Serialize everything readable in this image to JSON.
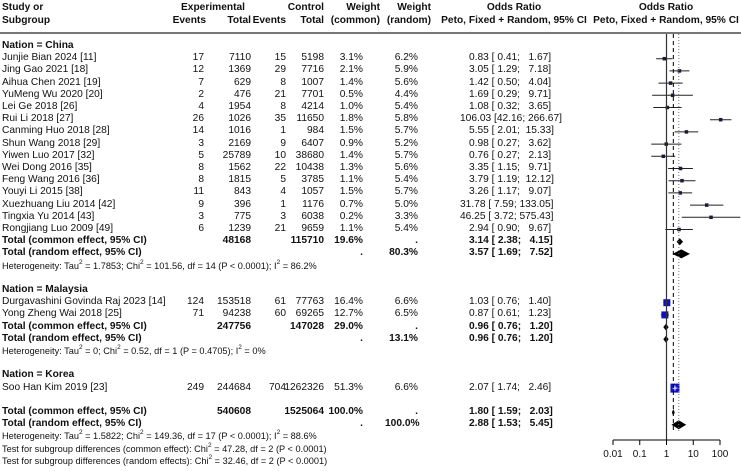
{
  "header": {
    "study_l1": "Study or",
    "study_l2": "Subgroup",
    "experimental": "Experimental",
    "exp_events": "Events",
    "exp_total": "Total",
    "ctrl_events": "Events",
    "control": "Control",
    "ctrl_total": "Total",
    "w_common_l1": "Weight",
    "w_common_l2": "(common)",
    "w_random_l1": "Weight",
    "w_random_l2": "(random)",
    "or_l1": "Odds Ratio",
    "or_l2": "Peto, Fixed + Random, 95% CI",
    "plot_l1": "Odds Ratio",
    "plot_l2": "Peto, Fixed + Random, 95% CI"
  },
  "rows": [
    {
      "type": "group",
      "label": "Nation = China"
    },
    {
      "type": "study",
      "label": "Junjie Bian 2024 [11]",
      "e_ev": "17",
      "e_tot": "7110",
      "c_ev": "15",
      "c_tot": "5198",
      "w_c": "3.1%",
      "w_r": "6.2%",
      "or": "0.83 [ 0.41;   1.67]",
      "est": 0.83,
      "lo": 0.41,
      "hi": 1.67
    },
    {
      "type": "study",
      "label": "Jing Gao 2021 [18]",
      "e_ev": "12",
      "e_tot": "1369",
      "c_ev": "29",
      "c_tot": "7716",
      "w_c": "2.1%",
      "w_r": "5.9%",
      "or": "3.05 [ 1.29;   7.18]",
      "est": 3.05,
      "lo": 1.29,
      "hi": 7.18
    },
    {
      "type": "study",
      "label": "Aihua Chen 2021 [19]",
      "e_ev": "7",
      "e_tot": "629",
      "c_ev": "8",
      "c_tot": "1007",
      "w_c": "1.4%",
      "w_r": "5.6%",
      "or": "1.42 [ 0.50;   4.04]",
      "est": 1.42,
      "lo": 0.5,
      "hi": 4.04
    },
    {
      "type": "study",
      "label": "YuMeng Wu 2020 [20]",
      "e_ev": "2",
      "e_tot": "476",
      "c_ev": "21",
      "c_tot": "7701",
      "w_c": "0.5%",
      "w_r": "4.4%",
      "or": "1.69 [ 0.29;   9.71]",
      "est": 1.69,
      "lo": 0.29,
      "hi": 9.71
    },
    {
      "type": "study",
      "label": "Lei Ge 2018 [26]",
      "e_ev": "4",
      "e_tot": "1954",
      "c_ev": "8",
      "c_tot": "4214",
      "w_c": "1.0%",
      "w_r": "5.4%",
      "or": "1.08 [ 0.32;   3.65]",
      "est": 1.08,
      "lo": 0.32,
      "hi": 3.65
    },
    {
      "type": "study",
      "label": "Rui Li 2018 [27]",
      "e_ev": "26",
      "e_tot": "1026",
      "c_ev": "35",
      "c_tot": "11650",
      "w_c": "1.8%",
      "w_r": "5.8%",
      "or": "106.03 [42.16; 266.67]",
      "est": 106.03,
      "lo": 42.16,
      "hi": 266.67
    },
    {
      "type": "study",
      "label": "Canming Huo 2018 [28]",
      "e_ev": "14",
      "e_tot": "1016",
      "c_ev": "1",
      "c_tot": "984",
      "w_c": "1.5%",
      "w_r": "5.7%",
      "or": "5.55 [ 2.01;  15.33]",
      "est": 5.55,
      "lo": 2.01,
      "hi": 15.33
    },
    {
      "type": "study",
      "label": "Shun Wang 2018 [29]",
      "e_ev": "3",
      "e_tot": "2169",
      "c_ev": "9",
      "c_tot": "6407",
      "w_c": "0.9%",
      "w_r": "5.2%",
      "or": "0.98 [ 0.27;   3.62]",
      "est": 0.98,
      "lo": 0.27,
      "hi": 3.62
    },
    {
      "type": "study",
      "label": "Yiwen Luo 2017 [32]",
      "e_ev": "5",
      "e_tot": "25789",
      "c_ev": "10",
      "c_tot": "38680",
      "w_c": "1.4%",
      "w_r": "5.7%",
      "or": "0.76 [ 0.27;   2.13]",
      "est": 0.76,
      "lo": 0.27,
      "hi": 2.13
    },
    {
      "type": "study",
      "label": "Wei Dong 2016 [35]",
      "e_ev": "8",
      "e_tot": "1562",
      "c_ev": "22",
      "c_tot": "10438",
      "w_c": "1.3%",
      "w_r": "5.6%",
      "or": "3.35 [ 1.15;   9.71]",
      "est": 3.35,
      "lo": 1.15,
      "hi": 9.71
    },
    {
      "type": "study",
      "label": "Feng Wang 2016 [36]",
      "e_ev": "8",
      "e_tot": "1815",
      "c_ev": "5",
      "c_tot": "3785",
      "w_c": "1.1%",
      "w_r": "5.4%",
      "or": "3.79 [ 1.19;  12.12]",
      "est": 3.79,
      "lo": 1.19,
      "hi": 12.12
    },
    {
      "type": "study",
      "label": "Youyi Li 2015 [38]",
      "e_ev": "11",
      "e_tot": "843",
      "c_ev": "4",
      "c_tot": "1057",
      "w_c": "1.5%",
      "w_r": "5.7%",
      "or": "3.26 [ 1.17;   9.07]",
      "est": 3.26,
      "lo": 1.17,
      "hi": 9.07
    },
    {
      "type": "study",
      "label": "Xuezhuang Liu 2014 [42]",
      "e_ev": "9",
      "e_tot": "396",
      "c_ev": "1",
      "c_tot": "1176",
      "w_c": "0.7%",
      "w_r": "5.0%",
      "or": "31.78 [ 7.59; 133.05]",
      "est": 31.78,
      "lo": 7.59,
      "hi": 133.05
    },
    {
      "type": "study",
      "label": "Tingxia Yu 2014 [43]",
      "e_ev": "3",
      "e_tot": "775",
      "c_ev": "3",
      "c_tot": "6038",
      "w_c": "0.2%",
      "w_r": "3.3%",
      "or": "46.25 [ 3.72; 575.43]",
      "est": 46.25,
      "lo": 3.72,
      "hi": 575.43
    },
    {
      "type": "study",
      "label": "Rongjiang Luo 2009 [49]",
      "e_ev": "6",
      "e_tot": "1239",
      "c_ev": "21",
      "c_tot": "9659",
      "w_c": "1.1%",
      "w_r": "5.4%",
      "or": "2.94 [ 0.90;   9.67]",
      "est": 2.94,
      "lo": 0.9,
      "hi": 9.67
    },
    {
      "type": "common",
      "label": "Total (common effect, 95% CI)",
      "e_tot": "48168",
      "c_tot": "115710",
      "w_c": "19.6%",
      "w_r": ".",
      "or": "3.14 [ 2.38;   4.15]",
      "est": 3.14,
      "lo": 2.38,
      "hi": 4.15
    },
    {
      "type": "random",
      "label": "Total (random effect, 95% CI)",
      "w_c": ".",
      "w_r": "80.3%",
      "or": "3.57 [ 1.69;   7.52]",
      "est": 3.57,
      "lo": 1.69,
      "hi": 7.52
    },
    {
      "type": "het",
      "label": "Heterogeneity: Tau",
      "sup1": "2",
      "mid1": " = 1.7853; Chi",
      "sup2": "2",
      "mid2": " = 101.56, df = 14 (P < 0.0001); I",
      "sup3": "2",
      "end": " = 86.2%"
    },
    {
      "type": "blank"
    },
    {
      "type": "group",
      "label": "Nation = Malaysia"
    },
    {
      "type": "study",
      "label": "Durgavashini Govinda Raj 2023 [14]",
      "e_ev": "124",
      "e_tot": "153518",
      "c_ev": "61",
      "c_tot": "77763",
      "w_c": "16.4%",
      "w_r": "6.6%",
      "or": "1.03 [ 0.76;   1.40]",
      "est": 1.03,
      "lo": 0.76,
      "hi": 1.4,
      "blue": true
    },
    {
      "type": "study",
      "label": "Yong Zheng Wai 2018 [25]",
      "e_ev": "71",
      "e_tot": "94238",
      "c_ev": "60",
      "c_tot": "69265",
      "w_c": "12.7%",
      "w_r": "6.5%",
      "or": "0.87 [ 0.61;   1.23]",
      "est": 0.87,
      "lo": 0.61,
      "hi": 1.23,
      "blue": true
    },
    {
      "type": "common",
      "label": "Total (common effect, 95% CI)",
      "e_tot": "247756",
      "c_tot": "147028",
      "w_c": "29.0%",
      "w_r": ".",
      "or": "0.96 [ 0.76;   1.20]",
      "est": 0.96,
      "lo": 0.76,
      "hi": 1.2
    },
    {
      "type": "random",
      "label": "Total (random effect, 95% CI)",
      "w_c": ".",
      "w_r": "13.1%",
      "or": "0.96 [ 0.76;   1.20]",
      "est": 0.96,
      "lo": 0.76,
      "hi": 1.2
    },
    {
      "type": "het",
      "label": "Heterogeneity: Tau",
      "sup1": "2",
      "mid1": " = 0; Chi",
      "sup2": "2",
      "mid2": " = 0.52, df = 1 (P = 0.4705); I",
      "sup3": "2",
      "end": " = 0%"
    },
    {
      "type": "blank"
    },
    {
      "type": "group",
      "label": "Nation = Korea"
    },
    {
      "type": "study",
      "label": "Soo Han Kim 2019 [23]",
      "e_ev": "249",
      "e_tot": "244684",
      "c_ev": "704",
      "c_tot": "1262326",
      "w_c": "51.3%",
      "w_r": "6.6%",
      "or": "2.07 [ 1.74;   2.46]",
      "est": 2.07,
      "lo": 1.74,
      "hi": 2.46,
      "blue": true,
      "big": true
    },
    {
      "type": "blank"
    },
    {
      "type": "common",
      "overall": true,
      "label": "Total (common effect, 95% CI)",
      "e_tot": "540608",
      "c_tot": "1525064",
      "w_c": "100.0%",
      "w_r": ".",
      "or": "1.80 [ 1.59;   2.03]",
      "est": 1.8,
      "lo": 1.59,
      "hi": 2.03
    },
    {
      "type": "random",
      "overall": true,
      "label": "Total (random effect, 95% CI)",
      "w_c": ".",
      "w_r": "100.0%",
      "or": "2.88 [ 1.53;   5.45]",
      "est": 2.88,
      "lo": 1.53,
      "hi": 5.45
    },
    {
      "type": "het",
      "label": "Heterogeneity: Tau",
      "sup1": "2",
      "mid1": " = 1.5822; Chi",
      "sup2": "2",
      "mid2": " = 149.36, df = 17 (P < 0.0001); I",
      "sup3": "2",
      "end": " = 88.6%"
    },
    {
      "type": "het",
      "label": "Test for subgroup differences (common effect): Chi",
      "sup1": "2",
      "mid1": " = 47.28, df = 2 (P < 0.0001)"
    },
    {
      "type": "het",
      "label": "Test for subgroup differences (random effects): Chi",
      "sup1": "2",
      "mid1": " = 32.46, df = 2 (P < 0.0001)"
    }
  ],
  "axis": {
    "ticks": [
      "0.01",
      "0.1",
      "1",
      "10",
      "100"
    ],
    "tick_values": [
      0.01,
      0.1,
      1,
      10,
      100
    ]
  },
  "colors": {
    "square_black": "#1a1a3a",
    "square_blue": "#1010c8",
    "line": "#000000",
    "header_rule": "#777777"
  },
  "chart_data": {
    "type": "forest",
    "title": "Odds Ratio (Peto, Fixed + Random, 95% CI)",
    "xlabel": "Odds Ratio",
    "xscale": "log",
    "xlim": [
      0.01,
      100
    ],
    "xticks": [
      0.01,
      0.1,
      1,
      10,
      100
    ],
    "reference_line": 1,
    "common_effect_line": 1.8,
    "random_effect_line": 2.88,
    "subgroups": [
      {
        "name": "Nation = China",
        "studies": [
          {
            "study": "Junjie Bian 2024 [11]",
            "or": 0.83,
            "lo": 0.41,
            "hi": 1.67,
            "w_common": 3.1,
            "w_random": 6.2
          },
          {
            "study": "Jing Gao 2021 [18]",
            "or": 3.05,
            "lo": 1.29,
            "hi": 7.18,
            "w_common": 2.1,
            "w_random": 5.9
          },
          {
            "study": "Aihua Chen 2021 [19]",
            "or": 1.42,
            "lo": 0.5,
            "hi": 4.04,
            "w_common": 1.4,
            "w_random": 5.6
          },
          {
            "study": "YuMeng Wu 2020 [20]",
            "or": 1.69,
            "lo": 0.29,
            "hi": 9.71,
            "w_common": 0.5,
            "w_random": 4.4
          },
          {
            "study": "Lei Ge 2018 [26]",
            "or": 1.08,
            "lo": 0.32,
            "hi": 3.65,
            "w_common": 1.0,
            "w_random": 5.4
          },
          {
            "study": "Rui Li 2018 [27]",
            "or": 106.03,
            "lo": 42.16,
            "hi": 266.67,
            "w_common": 1.8,
            "w_random": 5.8
          },
          {
            "study": "Canming Huo 2018 [28]",
            "or": 5.55,
            "lo": 2.01,
            "hi": 15.33,
            "w_common": 1.5,
            "w_random": 5.7
          },
          {
            "study": "Shun Wang 2018 [29]",
            "or": 0.98,
            "lo": 0.27,
            "hi": 3.62,
            "w_common": 0.9,
            "w_random": 5.2
          },
          {
            "study": "Yiwen Luo 2017 [32]",
            "or": 0.76,
            "lo": 0.27,
            "hi": 2.13,
            "w_common": 1.4,
            "w_random": 5.7
          },
          {
            "study": "Wei Dong 2016 [35]",
            "or": 3.35,
            "lo": 1.15,
            "hi": 9.71,
            "w_common": 1.3,
            "w_random": 5.6
          },
          {
            "study": "Feng Wang 2016 [36]",
            "or": 3.79,
            "lo": 1.19,
            "hi": 12.12,
            "w_common": 1.1,
            "w_random": 5.4
          },
          {
            "study": "Youyi Li 2015 [38]",
            "or": 3.26,
            "lo": 1.17,
            "hi": 9.07,
            "w_common": 1.5,
            "w_random": 5.7
          },
          {
            "study": "Xuezhuang Liu 2014 [42]",
            "or": 31.78,
            "lo": 7.59,
            "hi": 133.05,
            "w_common": 0.7,
            "w_random": 5.0
          },
          {
            "study": "Tingxia Yu 2014 [43]",
            "or": 46.25,
            "lo": 3.72,
            "hi": 575.43,
            "w_common": 0.2,
            "w_random": 3.3
          },
          {
            "study": "Rongjiang Luo 2009 [49]",
            "or": 2.94,
            "lo": 0.9,
            "hi": 9.67,
            "w_common": 1.1,
            "w_random": 5.4
          }
        ],
        "common": {
          "or": 3.14,
          "lo": 2.38,
          "hi": 4.15,
          "weight": 19.6
        },
        "random": {
          "or": 3.57,
          "lo": 1.69,
          "hi": 7.52,
          "weight": 80.3
        },
        "heterogeneity": "Tau^2 = 1.7853; Chi^2 = 101.56, df = 14 (P < 0.0001); I^2 = 86.2%"
      },
      {
        "name": "Nation = Malaysia",
        "studies": [
          {
            "study": "Durgavashini Govinda Raj 2023 [14]",
            "or": 1.03,
            "lo": 0.76,
            "hi": 1.4,
            "w_common": 16.4,
            "w_random": 6.6
          },
          {
            "study": "Yong Zheng Wai 2018 [25]",
            "or": 0.87,
            "lo": 0.61,
            "hi": 1.23,
            "w_common": 12.7,
            "w_random": 6.5
          }
        ],
        "common": {
          "or": 0.96,
          "lo": 0.76,
          "hi": 1.2,
          "weight": 29.0
        },
        "random": {
          "or": 0.96,
          "lo": 0.76,
          "hi": 1.2,
          "weight": 13.1
        },
        "heterogeneity": "Tau^2 = 0; Chi^2 = 0.52, df = 1 (P = 0.4705); I^2 = 0%"
      },
      {
        "name": "Nation = Korea",
        "studies": [
          {
            "study": "Soo Han Kim 2019 [23]",
            "or": 2.07,
            "lo": 1.74,
            "hi": 2.46,
            "w_common": 51.3,
            "w_random": 6.6
          }
        ]
      }
    ],
    "overall": {
      "common": {
        "or": 1.8,
        "lo": 1.59,
        "hi": 2.03,
        "weight": 100.0
      },
      "random": {
        "or": 2.88,
        "lo": 1.53,
        "hi": 5.45,
        "weight": 100.0
      },
      "heterogeneity": "Tau^2 = 1.5822; Chi^2 = 149.36, df = 17 (P < 0.0001); I^2 = 88.6%",
      "subgroup_test_common": "Chi^2 = 47.28, df = 2 (P < 0.0001)",
      "subgroup_test_random": "Chi^2 = 32.46, df = 2 (P < 0.0001)"
    }
  }
}
